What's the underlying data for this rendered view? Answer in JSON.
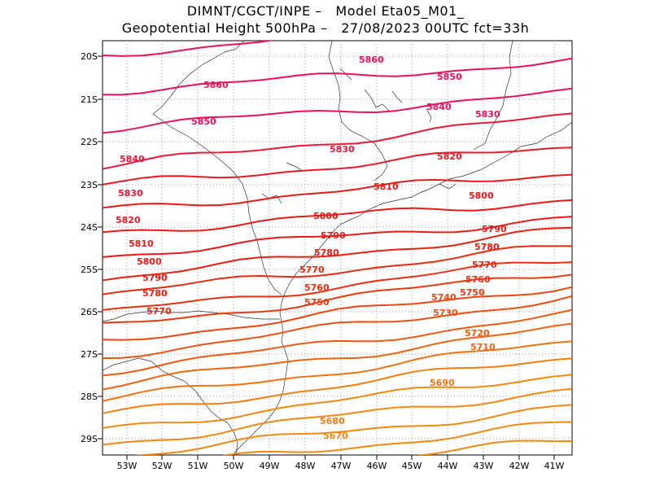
{
  "title_line1": "DIMNT/CGCT/INPE –   Model Eta05_M01_",
  "title_line2": "Geopotential Height 500hPa –   27/08/2023 00UTC fct=33h",
  "lon_ticks": [
    "53W",
    "52W",
    "51W",
    "50W",
    "49W",
    "48W",
    "47W",
    "46W",
    "45W",
    "44W",
    "43W",
    "42W",
    "41W"
  ],
  "lat_ticks": [
    "20S",
    "21S",
    "22S",
    "23S",
    "24S",
    "25S",
    "26S",
    "27S",
    "28S",
    "29S"
  ],
  "contour_labels": [
    {
      "text": "5860",
      "color": "#e8125e"
    },
    {
      "text": "5860",
      "color": "#e8125e"
    },
    {
      "text": "5850",
      "color": "#e8125e"
    },
    {
      "text": "5850",
      "color": "#e8125e"
    },
    {
      "text": "5840",
      "color": "#e8125e"
    },
    {
      "text": "5840",
      "color": "#e81a3a"
    },
    {
      "text": "5830",
      "color": "#e8125e"
    },
    {
      "text": "5830",
      "color": "#e81a3a"
    },
    {
      "text": "5830",
      "color": "#e81a3a"
    },
    {
      "text": "5820",
      "color": "#e81a2a"
    },
    {
      "text": "5820",
      "color": "#e81a2a"
    },
    {
      "text": "5810",
      "color": "#e81a1a"
    },
    {
      "text": "5810",
      "color": "#e81a1a"
    },
    {
      "text": "5800",
      "color": "#e81a1a"
    },
    {
      "text": "5800",
      "color": "#e81a1a"
    },
    {
      "text": "5800",
      "color": "#e81a1a"
    },
    {
      "text": "5790",
      "color": "#e81a1a"
    },
    {
      "text": "5790",
      "color": "#e81a1a"
    },
    {
      "text": "5790",
      "color": "#e81a1a"
    },
    {
      "text": "5780",
      "color": "#e82010"
    },
    {
      "text": "5780",
      "color": "#e82010"
    },
    {
      "text": "5780",
      "color": "#e82010"
    },
    {
      "text": "5770",
      "color": "#e82a10"
    },
    {
      "text": "5770",
      "color": "#e82a10"
    },
    {
      "text": "5770",
      "color": "#e82a10"
    },
    {
      "text": "5760",
      "color": "#e83010"
    },
    {
      "text": "5760",
      "color": "#e83010"
    },
    {
      "text": "5750",
      "color": "#ea3a10"
    },
    {
      "text": "5750",
      "color": "#ea3a10"
    },
    {
      "text": "5740",
      "color": "#ec4810"
    },
    {
      "text": "5730",
      "color": "#ee5010"
    },
    {
      "text": "5720",
      "color": "#f05a10"
    },
    {
      "text": "5710",
      "color": "#f06410"
    },
    {
      "text": "5690",
      "color": "#f27210"
    },
    {
      "text": "5680",
      "color": "#f47e10"
    },
    {
      "text": "5670",
      "color": "#f48810"
    }
  ]
}
